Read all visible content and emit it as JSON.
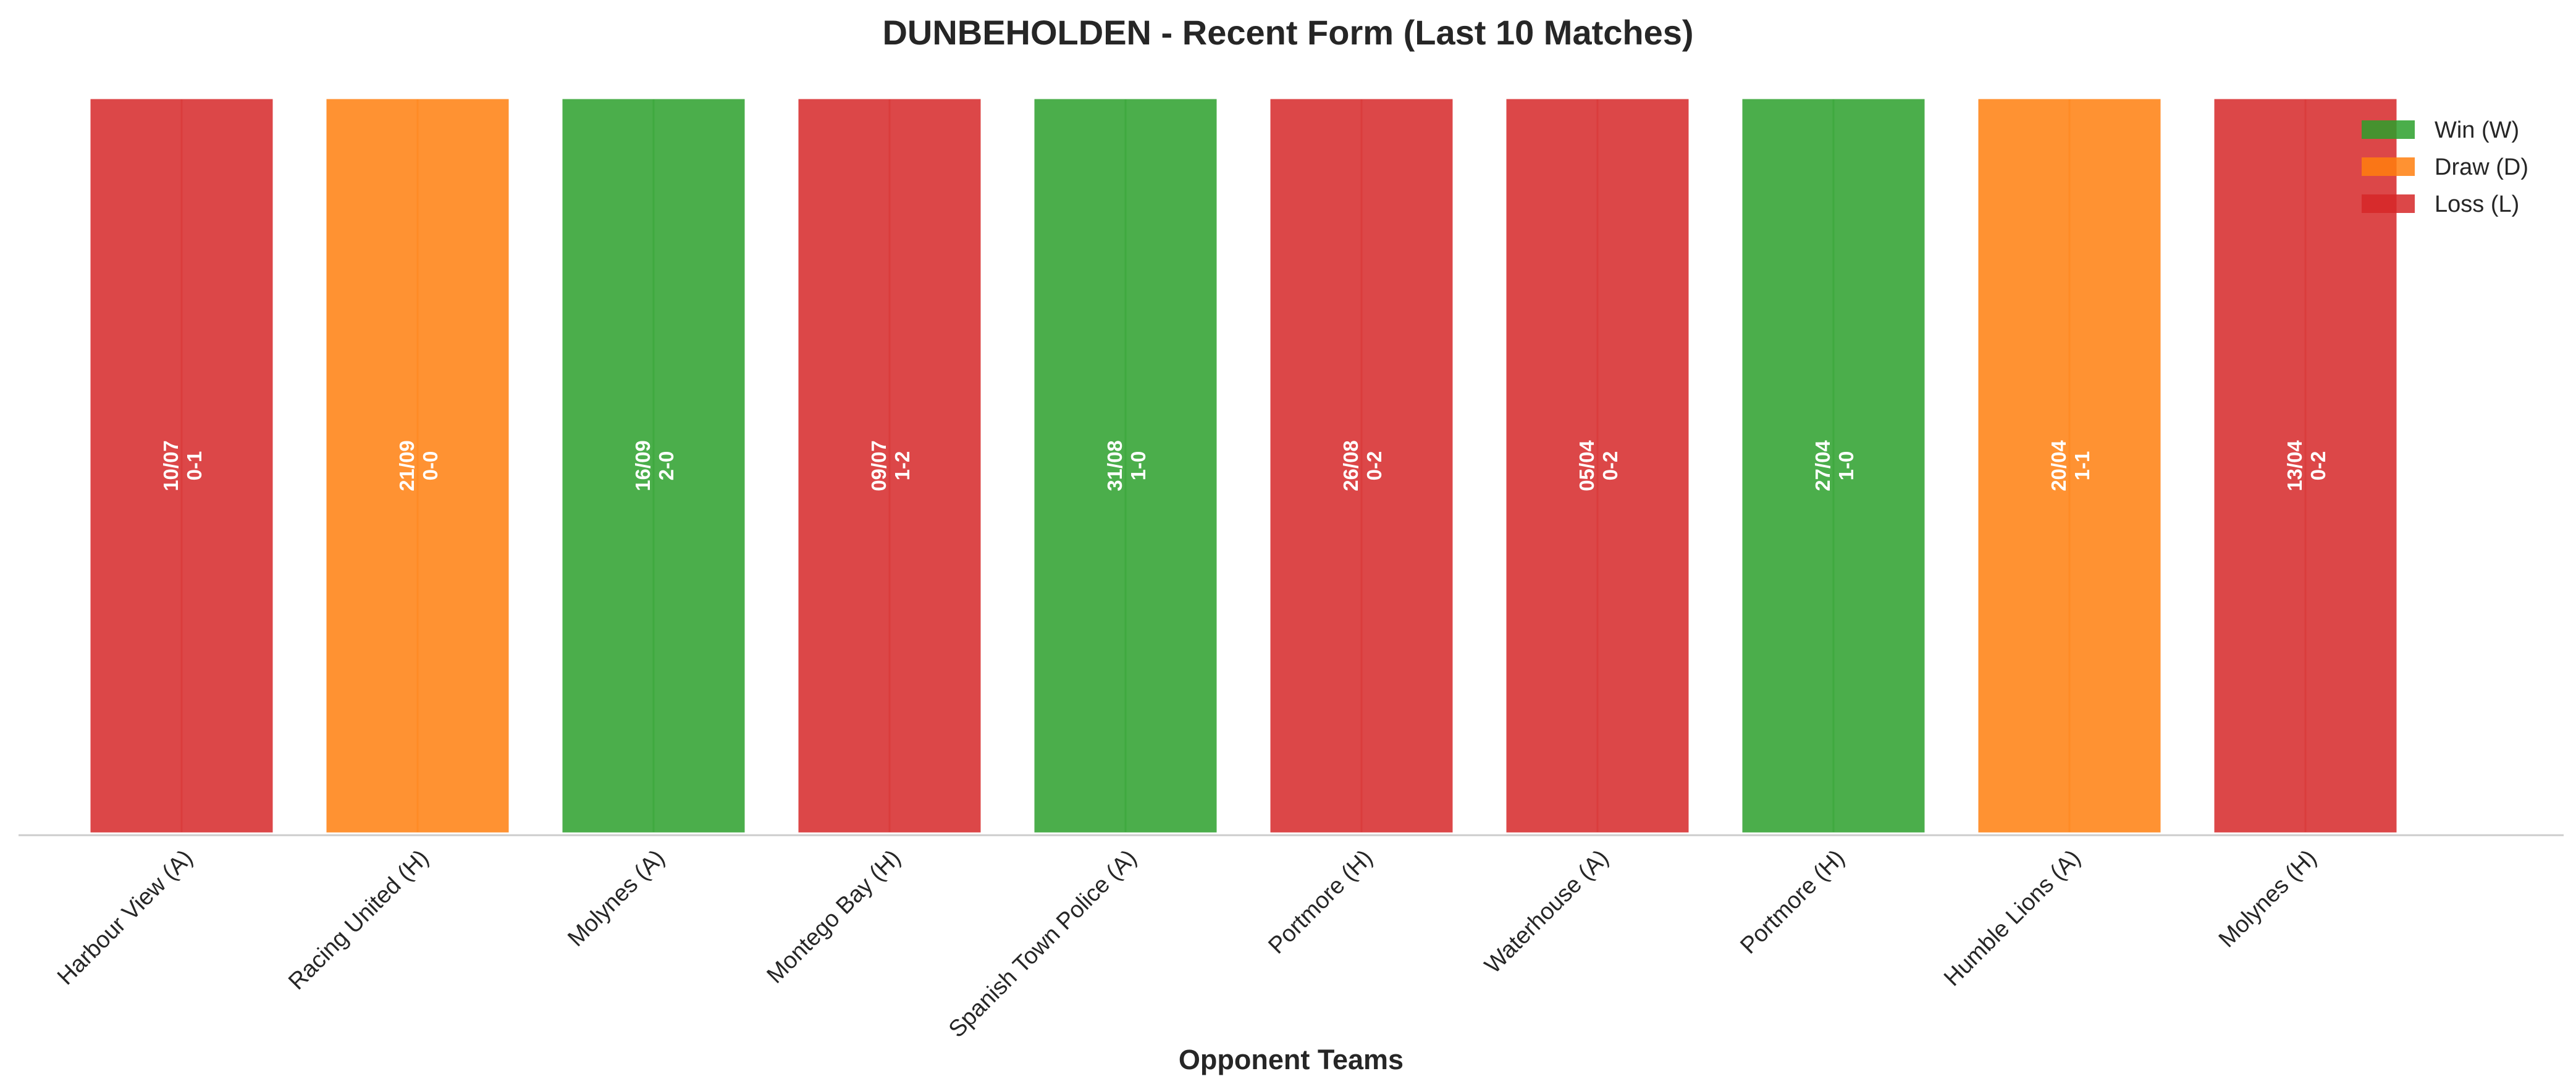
{
  "chart_data": {
    "type": "bar",
    "title": "DUNBEHOLDEN - Recent Form (Last 10 Matches)",
    "xlabel": "Opponent Teams",
    "ylabel": "",
    "grid": false,
    "legend_position": "top-right",
    "categories": [
      "Harbour View (A)",
      "Racing United (H)",
      "Molynes (A)",
      "Montego Bay (H)",
      "Spanish Town Police (A)",
      "Portmore (H)",
      "Waterhouse (A)",
      "Portmore (H)",
      "Humble Lions (A)",
      "Molynes (H)"
    ],
    "values": [
      1,
      1,
      1,
      1,
      1,
      1,
      1,
      1,
      1,
      1
    ],
    "results": [
      "L",
      "D",
      "W",
      "L",
      "W",
      "L",
      "L",
      "W",
      "D",
      "L"
    ],
    "dates": [
      "10/07",
      "21/09",
      "16/09",
      "09/07",
      "31/08",
      "26/08",
      "05/04",
      "27/04",
      "20/04",
      "13/04"
    ],
    "scores": [
      "0-1",
      "0-0",
      "2-0",
      "1-2",
      "1-0",
      "0-2",
      "0-2",
      "1-0",
      "1-1",
      "0-2"
    ],
    "legend": [
      {
        "key": "W",
        "label": "Win (W)",
        "color": "#2ca02c"
      },
      {
        "key": "D",
        "label": "Draw (D)",
        "color": "#ff7f0e"
      },
      {
        "key": "L",
        "label": "Loss (L)",
        "color": "#d62728"
      }
    ]
  }
}
